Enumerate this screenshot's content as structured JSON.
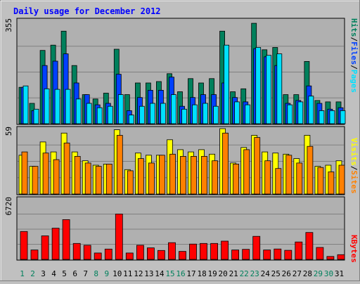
{
  "title": "Daily usage for December 2012",
  "colors": {
    "hits": "#00805c",
    "files": "#0040ff",
    "pages": "#00e0ff",
    "visits": "#ffff00",
    "sites": "#ff8000",
    "kbytes": "#ff0000",
    "title": "#0000ff",
    "weekday": "#000000",
    "weekend": "#00805c"
  },
  "axis_labels": {
    "top_max": "355",
    "mid_max": "59",
    "bottom_max": "6720",
    "top_legend": [
      "Pages",
      "/",
      "Files",
      "/",
      "Hits"
    ],
    "mid_legend": [
      "Sites",
      "/",
      "Visits"
    ],
    "bottom_legend": [
      "KBytes"
    ]
  },
  "chart_data": {
    "type": "bar",
    "title": "Daily usage for December 2012",
    "categories": [
      "1",
      "2",
      "3",
      "4",
      "5",
      "6",
      "7",
      "8",
      "9",
      "10",
      "11",
      "12",
      "13",
      "14",
      "15",
      "16",
      "17",
      "18",
      "19",
      "20",
      "21",
      "22",
      "23",
      "24",
      "25",
      "26",
      "27",
      "28",
      "29",
      "30",
      "31"
    ],
    "weekend_days": [
      "1",
      "2",
      "8",
      "9",
      "15",
      "16",
      "22",
      "23",
      "29",
      "30"
    ],
    "panels": [
      {
        "name": "top",
        "max": 355,
        "series": [
          {
            "name": "Hits",
            "values": [
              125,
              70,
              252,
              270,
              318,
              200,
              100,
              85,
              105,
              256,
              100,
              140,
              140,
              145,
              172,
              110,
              155,
              140,
              155,
              318,
              110,
              120,
              345,
              254,
              262,
              100,
              100,
              214,
              80,
              75,
              75
            ]
          },
          {
            "name": "Files",
            "values": [
              125,
              45,
              200,
              215,
              240,
              140,
              100,
              65,
              70,
              170,
              45,
              90,
              115,
              115,
              160,
              60,
              90,
              100,
              100,
              140,
              90,
              75,
              258,
              230,
              200,
              70,
              80,
              130,
              70,
              50,
              55
            ]
          },
          {
            "name": "Pages",
            "values": [
              130,
              50,
              120,
              118,
              118,
              85,
              70,
              55,
              60,
              100,
              30,
              60,
              70,
              70,
              100,
              50,
              65,
              70,
              60,
              270,
              75,
              65,
              262,
              235,
              240,
              65,
              75,
              95,
              45,
              45,
              45
            ]
          }
        ]
      },
      {
        "name": "middle",
        "max": 59,
        "series": [
          {
            "name": "Visits",
            "values": [
              35,
              25,
              47,
              38,
              55,
              38,
              30,
              26,
              27,
              58,
              22,
              37,
              35,
              35,
              49,
              40,
              38,
              40,
              36,
              59,
              28,
              42,
              53,
              38,
              37,
              36,
              32,
              53,
              25,
              26,
              30
            ]
          },
          {
            "name": "Sites",
            "values": [
              38,
              25,
              37,
              31,
              46,
              34,
              28,
              25,
              27,
              53,
              21,
              32,
              28,
              35,
              36,
              34,
              34,
              34,
              30,
              55,
              27,
              40,
              51,
              30,
              23,
              35,
              28,
              43,
              24,
              20,
              26
            ]
          }
        ]
      },
      {
        "name": "bottom",
        "max": 6720,
        "series": [
          {
            "name": "KBytes",
            "values": [
              3100,
              1050,
              2620,
              3470,
              4420,
              1770,
              1570,
              710,
              1150,
              5050,
              710,
              1570,
              1280,
              990,
              1860,
              890,
              1700,
              1770,
              1770,
              2030,
              1050,
              1120,
              2560,
              1050,
              1160,
              1010,
              1940,
              2990,
              1330,
              330,
              520
            ]
          }
        ]
      }
    ]
  }
}
